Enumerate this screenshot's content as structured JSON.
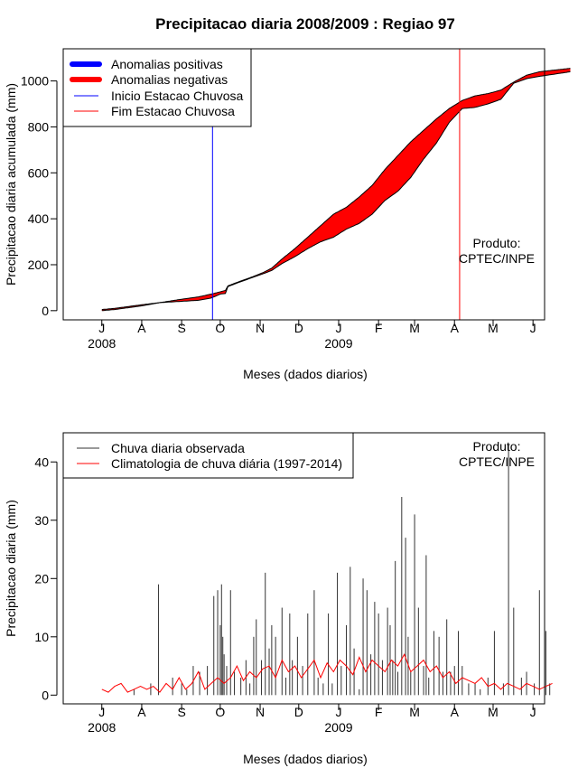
{
  "figure_title": "Precipitacao diaria 2008/2009 : Regiao 97",
  "credit": [
    "Produto:",
    "CPTEC/INPE"
  ],
  "chart_data": [
    {
      "type": "area",
      "title": "Precipitacao diaria 2008/2009 : Regiao 97",
      "xlabel": "Meses (dados diarios)",
      "ylabel": "Precipitacao diaria acumulada (mm)",
      "ylim": [
        -40,
        1140
      ],
      "yticks": [
        0,
        200,
        400,
        600,
        800,
        1000
      ],
      "xlim": [
        -30,
        344
      ],
      "months": [
        {
          "label": "J",
          "day": 0
        },
        {
          "label": "A",
          "day": 31
        },
        {
          "label": "S",
          "day": 62
        },
        {
          "label": "O",
          "day": 92
        },
        {
          "label": "N",
          "day": 123
        },
        {
          "label": "D",
          "day": 153
        },
        {
          "label": "J",
          "day": 184
        },
        {
          "label": "F",
          "day": 215
        },
        {
          "label": "M",
          "day": 243
        },
        {
          "label": "A",
          "day": 274
        },
        {
          "label": "M",
          "day": 304
        },
        {
          "label": "J",
          "day": 335
        }
      ],
      "years": [
        {
          "label": "2008",
          "day": 0
        },
        {
          "label": "2009",
          "day": 184
        }
      ],
      "legend": [
        {
          "label": "Anomalias positivas",
          "color": "#0000ff",
          "style": "thick"
        },
        {
          "label": "Anomalias negativas",
          "color": "#ff0000",
          "style": "thick"
        },
        {
          "label": "Inicio Estacao Chuvosa",
          "color": "#0000ff",
          "style": "thin"
        },
        {
          "label": "Fim Estacao Chuvosa",
          "color": "#ff0000",
          "style": "thin"
        }
      ],
      "rainy_season_start_day": 86,
      "rainy_season_end_day": 278,
      "observed_cumulative": {
        "day": [
          0,
          10,
          30,
          45,
          60,
          75,
          85,
          92,
          96,
          98,
          105,
          115,
          125,
          132,
          140,
          150,
          160,
          170,
          180,
          190,
          200,
          210,
          220,
          230,
          240,
          250,
          260,
          270,
          280,
          290,
          300,
          310,
          320,
          330,
          340,
          364
        ],
        "value": [
          0,
          5,
          20,
          35,
          40,
          45,
          55,
          72,
          75,
          105,
          120,
          140,
          160,
          175,
          205,
          235,
          270,
          300,
          320,
          355,
          380,
          420,
          480,
          520,
          580,
          660,
          730,
          820,
          880,
          885,
          900,
          920,
          990,
          1010,
          1020,
          1040
        ]
      },
      "climatology_cumulative": {
        "day": [
          0,
          10,
          30,
          45,
          60,
          75,
          85,
          92,
          96,
          98,
          105,
          115,
          125,
          132,
          140,
          150,
          160,
          170,
          180,
          190,
          200,
          210,
          220,
          230,
          240,
          250,
          260,
          270,
          280,
          290,
          300,
          310,
          320,
          330,
          340,
          364
        ],
        "value": [
          5,
          10,
          25,
          35,
          48,
          60,
          72,
          82,
          88,
          108,
          123,
          143,
          165,
          185,
          225,
          270,
          320,
          370,
          420,
          450,
          495,
          545,
          615,
          675,
          735,
          785,
          835,
          880,
          915,
          935,
          945,
          960,
          995,
          1025,
          1040,
          1055
        ]
      }
    },
    {
      "type": "bar",
      "xlabel": "Meses (dados diarios)",
      "ylabel": "Precipitacao diaria (mm)",
      "ylim": [
        -1.5,
        45
      ],
      "yticks": [
        0,
        10,
        20,
        30,
        40
      ],
      "xlim": [
        -30,
        344
      ],
      "legend": [
        {
          "label": "Chuva diaria observada",
          "color": "#333333"
        },
        {
          "label": "Climatologia de chuva diária (1997-2014)",
          "color": "#ff0000"
        }
      ],
      "observed_daily": {
        "day": [
          25,
          38,
          44,
          55,
          62,
          66,
          71,
          76,
          82,
          87,
          90,
          92,
          93,
          94,
          95,
          97,
          100,
          103,
          108,
          112,
          115,
          118,
          120,
          124,
          127,
          130,
          132,
          135,
          140,
          143,
          146,
          148,
          152,
          156,
          160,
          165,
          168,
          172,
          176,
          179,
          183,
          186,
          190,
          193,
          196,
          200,
          203,
          206,
          209,
          212,
          215,
          218,
          222,
          224,
          226,
          228,
          230,
          233,
          236,
          238,
          240,
          243,
          246,
          250,
          252,
          254,
          258,
          262,
          265,
          268,
          271,
          274,
          277,
          280,
          285,
          290,
          294,
          300,
          305,
          312,
          316,
          320,
          326,
          330,
          336,
          340,
          345,
          348
        ],
        "value": [
          1,
          2,
          19,
          3,
          2,
          1,
          5,
          4,
          5,
          17,
          18,
          12,
          19,
          10,
          7,
          5,
          18,
          4,
          3,
          6,
          2,
          10,
          13,
          6,
          21,
          8,
          12,
          10,
          15,
          3,
          14,
          6,
          10,
          5,
          14,
          18,
          3,
          2,
          14,
          2,
          21,
          5,
          12,
          22,
          8,
          1,
          20,
          18,
          7,
          16,
          14,
          6,
          15,
          12,
          6,
          23,
          4,
          34,
          27,
          10,
          4,
          31,
          15,
          5,
          24,
          3,
          11,
          10,
          4,
          13,
          4,
          5,
          11,
          5,
          2,
          2,
          1,
          3,
          11,
          2,
          43,
          15,
          3,
          4,
          2,
          18,
          11,
          2
        ]
      },
      "climatology_daily": {
        "day": [
          0,
          5,
          10,
          15,
          20,
          25,
          30,
          35,
          40,
          45,
          50,
          55,
          60,
          65,
          70,
          75,
          80,
          85,
          90,
          95,
          100,
          105,
          110,
          115,
          120,
          125,
          130,
          135,
          140,
          145,
          150,
          155,
          160,
          165,
          170,
          175,
          180,
          185,
          190,
          195,
          200,
          205,
          210,
          215,
          220,
          225,
          230,
          235,
          240,
          245,
          250,
          255,
          260,
          265,
          270,
          275,
          280,
          285,
          290,
          295,
          300,
          305,
          310,
          315,
          320,
          325,
          330,
          335,
          340,
          345,
          350
        ],
        "value": [
          1,
          0.5,
          1.5,
          2,
          0.5,
          1,
          1.5,
          1,
          1.5,
          0.5,
          2,
          1,
          3,
          1,
          2,
          4,
          1,
          2,
          3,
          2,
          3,
          5,
          2.5,
          4,
          3,
          4.5,
          5,
          3,
          6,
          4,
          5,
          3,
          4.5,
          6,
          3,
          5.5,
          4,
          6,
          5,
          3.5,
          6.5,
          4,
          6,
          5,
          4,
          6,
          5,
          7,
          4,
          5,
          6,
          4,
          5,
          3,
          4,
          2,
          3,
          2.5,
          2,
          3,
          1.5,
          2,
          1,
          2,
          1.5,
          1,
          2,
          1.5,
          1,
          1.5,
          2
        ]
      }
    }
  ]
}
